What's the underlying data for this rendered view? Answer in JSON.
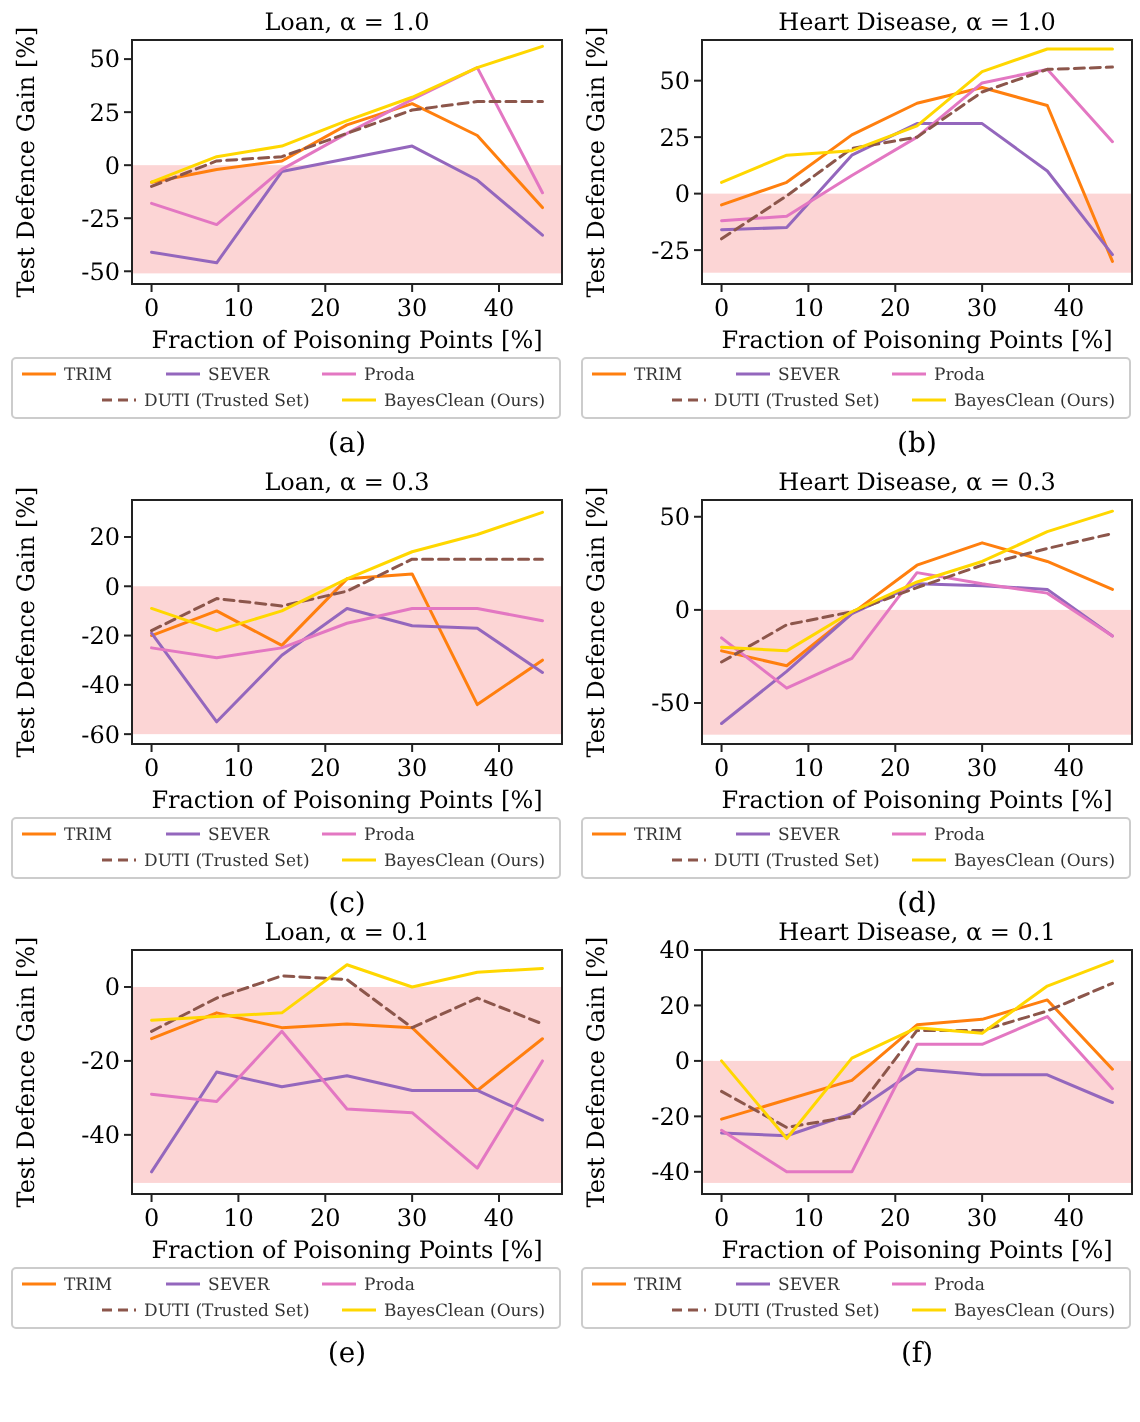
{
  "chart_data": [
    {
      "type": "line",
      "title": "Loan, α = 1.0",
      "xlabel": "Fraction of Poisoning Points [%]",
      "ylabel": "Test Defence Gain [%]",
      "annotations": [
        "(a)"
      ],
      "x": [
        0,
        7.5,
        15,
        22.5,
        30,
        37.5,
        45
      ],
      "xlim": [
        -2.25,
        47.25
      ],
      "xticks": [
        0,
        10,
        20,
        30,
        40
      ],
      "ylim": [
        -56,
        59
      ],
      "yticks": [
        -50,
        -25,
        0,
        25,
        50
      ],
      "grid": false,
      "legend": "bottom",
      "bands": [
        {
          "axis": "y",
          "from": -51,
          "to": 0,
          "color": "#fcd5d5"
        }
      ],
      "series": [
        {
          "name": "TRIM",
          "color": "#ff7f0e",
          "values": [
            -8,
            -2,
            2,
            19,
            29,
            14,
            -20
          ]
        },
        {
          "name": "SEVER",
          "color": "#9467bd",
          "values": [
            -41,
            -46,
            -3,
            3,
            9,
            -7,
            -33
          ]
        },
        {
          "name": "Proda",
          "color": "#e377c2",
          "values": [
            -18,
            -28,
            -2,
            15,
            31,
            46,
            -13
          ]
        },
        {
          "name": "DUTI (Trusted Set)",
          "color": "#8c564b",
          "line_style": "dashed",
          "values": [
            -10,
            2,
            4,
            15,
            26,
            30,
            30
          ]
        },
        {
          "name": "BayesClean (Ours)",
          "color": "#ffd700",
          "values": [
            -8,
            4,
            9,
            21,
            32,
            46,
            56
          ]
        }
      ]
    },
    {
      "type": "line",
      "title": "Heart Disease, α = 1.0",
      "xlabel": "Fraction of Poisoning Points [%]",
      "ylabel": "Test Defence Gain [%]",
      "annotations": [
        "(b)"
      ],
      "x": [
        0,
        7.5,
        15,
        22.5,
        30,
        37.5,
        45
      ],
      "xlim": [
        -2.25,
        47.25
      ],
      "xticks": [
        0,
        10,
        20,
        30,
        40
      ],
      "ylim": [
        -40,
        68
      ],
      "yticks": [
        -25,
        0,
        25,
        50
      ],
      "grid": false,
      "legend": "bottom",
      "bands": [
        {
          "axis": "y",
          "from": -35,
          "to": 0,
          "color": "#fcd5d5"
        }
      ],
      "series": [
        {
          "name": "TRIM",
          "color": "#ff7f0e",
          "values": [
            -5,
            5,
            26,
            40,
            47,
            39,
            -30
          ]
        },
        {
          "name": "SEVER",
          "color": "#9467bd",
          "values": [
            -16,
            -15,
            17,
            31,
            31,
            10,
            -27
          ]
        },
        {
          "name": "Proda",
          "color": "#e377c2",
          "values": [
            -12,
            -10,
            8,
            25,
            49,
            55,
            23
          ]
        },
        {
          "name": "DUTI (Trusted Set)",
          "color": "#8c564b",
          "line_style": "dashed",
          "values": [
            -20,
            -1,
            20,
            25,
            45,
            55,
            56
          ]
        },
        {
          "name": "BayesClean (Ours)",
          "color": "#ffd700",
          "values": [
            5,
            17,
            19,
            30,
            54,
            64,
            64
          ]
        }
      ]
    },
    {
      "type": "line",
      "title": "Loan, α = 0.3",
      "xlabel": "Fraction of Poisoning Points [%]",
      "ylabel": "Test Defence Gain [%]",
      "annotations": [
        "(c)"
      ],
      "x": [
        0,
        7.5,
        15,
        22.5,
        30,
        37.5,
        45
      ],
      "xlim": [
        -2.25,
        47.25
      ],
      "xticks": [
        0,
        10,
        20,
        30,
        40
      ],
      "ylim": [
        -64,
        35
      ],
      "yticks": [
        -60,
        -40,
        -20,
        0,
        20
      ],
      "grid": false,
      "legend": "bottom",
      "bands": [
        {
          "axis": "y",
          "from": -60,
          "to": 0,
          "color": "#fcd5d5"
        }
      ],
      "series": [
        {
          "name": "TRIM",
          "color": "#ff7f0e",
          "values": [
            -20,
            -10,
            -24,
            3,
            5,
            -48,
            -30
          ]
        },
        {
          "name": "SEVER",
          "color": "#9467bd",
          "values": [
            -19,
            -55,
            -28,
            -9,
            -16,
            -17,
            -35
          ]
        },
        {
          "name": "Proda",
          "color": "#e377c2",
          "values": [
            -25,
            -29,
            -25,
            -15,
            -9,
            -9,
            -14
          ]
        },
        {
          "name": "DUTI (Trusted Set)",
          "color": "#8c564b",
          "line_style": "dashed",
          "values": [
            -18,
            -5,
            -8,
            -2,
            11,
            11,
            11
          ]
        },
        {
          "name": "BayesClean (Ours)",
          "color": "#ffd700",
          "values": [
            -9,
            -18,
            -10,
            3,
            14,
            21,
            30
          ]
        }
      ]
    },
    {
      "type": "line",
      "title": "Heart Disease, α = 0.3",
      "xlabel": "Fraction of Poisoning Points [%]",
      "ylabel": "Test Defence Gain [%]",
      "annotations": [
        "(d)"
      ],
      "x": [
        0,
        7.5,
        15,
        22.5,
        30,
        37.5,
        45
      ],
      "xlim": [
        -2.25,
        47.25
      ],
      "xticks": [
        0,
        10,
        20,
        30,
        40
      ],
      "ylim": [
        -72,
        59
      ],
      "yticks": [
        -50,
        0,
        50
      ],
      "grid": false,
      "legend": "bottom",
      "bands": [
        {
          "axis": "y",
          "from": -67,
          "to": 0,
          "color": "#fcd5d5"
        }
      ],
      "series": [
        {
          "name": "TRIM",
          "color": "#ff7f0e",
          "values": [
            -22,
            -30,
            -2,
            24,
            36,
            26,
            11
          ]
        },
        {
          "name": "SEVER",
          "color": "#9467bd",
          "values": [
            -61,
            -33,
            -2,
            14,
            13,
            11,
            -14
          ]
        },
        {
          "name": "Proda",
          "color": "#e377c2",
          "values": [
            -15,
            -42,
            -26,
            20,
            14,
            9,
            -14
          ]
        },
        {
          "name": "DUTI (Trusted Set)",
          "color": "#8c564b",
          "line_style": "dashed",
          "values": [
            -28,
            -8,
            -1,
            12,
            24,
            33,
            41
          ]
        },
        {
          "name": "BayesClean (Ours)",
          "color": "#ffd700",
          "values": [
            -20,
            -22,
            -1,
            15,
            26,
            42,
            53
          ]
        }
      ]
    },
    {
      "type": "line",
      "title": "Loan, α = 0.1",
      "xlabel": "Fraction of Poisoning Points [%]",
      "ylabel": "Test Defence Gain [%]",
      "annotations": [
        "(e)"
      ],
      "x": [
        0,
        7.5,
        15,
        22.5,
        30,
        37.5,
        45
      ],
      "xlim": [
        -2.25,
        47.25
      ],
      "xticks": [
        0,
        10,
        20,
        30,
        40
      ],
      "ylim": [
        -56,
        10
      ],
      "yticks": [
        -40,
        -20,
        0
      ],
      "grid": false,
      "legend": "bottom",
      "bands": [
        {
          "axis": "y",
          "from": -53,
          "to": 0,
          "color": "#fcd5d5"
        }
      ],
      "series": [
        {
          "name": "TRIM",
          "color": "#ff7f0e",
          "values": [
            -14,
            -7,
            -11,
            -10,
            -11,
            -28,
            -14
          ]
        },
        {
          "name": "SEVER",
          "color": "#9467bd",
          "values": [
            -50,
            -23,
            -27,
            -24,
            -28,
            -28,
            -36
          ]
        },
        {
          "name": "Proda",
          "color": "#e377c2",
          "values": [
            -29,
            -31,
            -12,
            -33,
            -34,
            -49,
            -20
          ]
        },
        {
          "name": "DUTI (Trusted Set)",
          "color": "#8c564b",
          "line_style": "dashed",
          "values": [
            -12,
            -3,
            3,
            2,
            -11,
            -3,
            -10
          ]
        },
        {
          "name": "BayesClean (Ours)",
          "color": "#ffd700",
          "values": [
            -9,
            -8,
            -7,
            6,
            0,
            4,
            5
          ]
        }
      ]
    },
    {
      "type": "line",
      "title": "Heart Disease, α = 0.1",
      "xlabel": "Fraction of Poisoning Points [%]",
      "ylabel": "Test Defence Gain [%]",
      "annotations": [
        "(f)"
      ],
      "x": [
        0,
        7.5,
        15,
        22.5,
        30,
        37.5,
        45
      ],
      "xlim": [
        -2.25,
        47.25
      ],
      "xticks": [
        0,
        10,
        20,
        30,
        40
      ],
      "ylim": [
        -48,
        40
      ],
      "yticks": [
        -40,
        -20,
        0,
        20,
        40
      ],
      "grid": false,
      "legend": "bottom",
      "bands": [
        {
          "axis": "y",
          "from": -44,
          "to": 0,
          "color": "#fcd5d5"
        }
      ],
      "series": [
        {
          "name": "TRIM",
          "color": "#ff7f0e",
          "values": [
            -21,
            -14,
            -7,
            13,
            15,
            22,
            -3
          ]
        },
        {
          "name": "SEVER",
          "color": "#9467bd",
          "values": [
            -26,
            -27,
            -19,
            -3,
            -5,
            -5,
            -15
          ]
        },
        {
          "name": "Proda",
          "color": "#e377c2",
          "values": [
            -25,
            -40,
            -40,
            6,
            6,
            16,
            -10
          ]
        },
        {
          "name": "DUTI (Trusted Set)",
          "color": "#8c564b",
          "line_style": "dashed",
          "values": [
            -11,
            -24,
            -20,
            11,
            11,
            18,
            28
          ]
        },
        {
          "name": "BayesClean (Ours)",
          "color": "#ffd700",
          "values": [
            0,
            -28,
            1,
            12,
            10,
            27,
            36
          ]
        }
      ]
    }
  ]
}
